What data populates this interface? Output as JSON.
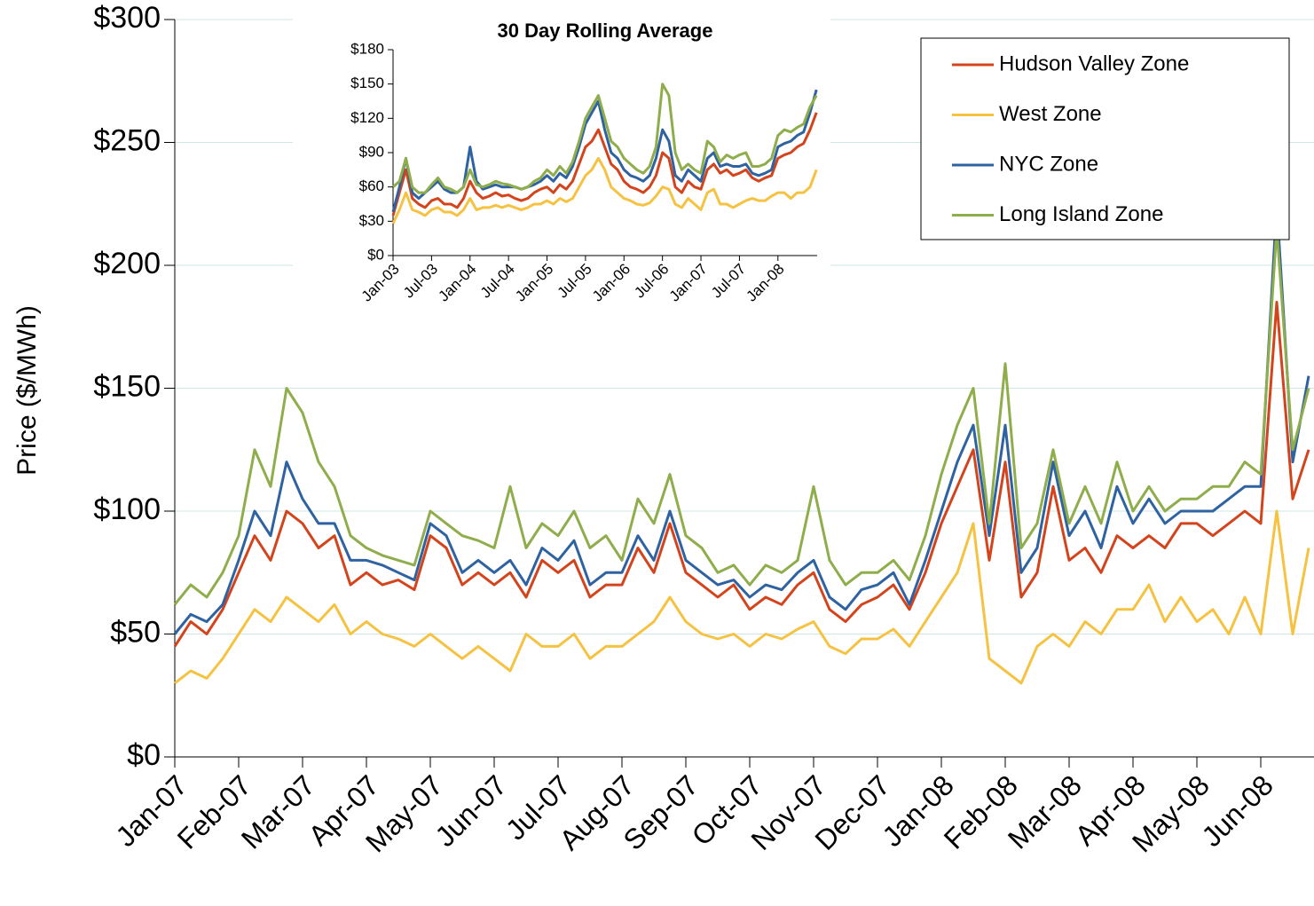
{
  "chart_data": [
    {
      "type": "line",
      "y_label": "Price ($/MWh)",
      "categories": [
        "Jan-07",
        null,
        null,
        null,
        "Feb-07",
        null,
        null,
        null,
        "Mar-07",
        null,
        null,
        null,
        "Apr-07",
        null,
        null,
        null,
        "May-07",
        null,
        null,
        null,
        "Jun-07",
        null,
        null,
        null,
        "Jul-07",
        null,
        null,
        null,
        "Aug-07",
        null,
        null,
        null,
        "Sep-07",
        null,
        null,
        null,
        "Oct-07",
        null,
        null,
        null,
        "Nov-07",
        null,
        null,
        null,
        "Dec-07",
        null,
        null,
        null,
        "Jan-08",
        null,
        null,
        null,
        "Feb-08",
        null,
        null,
        null,
        "Mar-08",
        null,
        null,
        null,
        "Apr-08",
        null,
        null,
        null,
        "May-08",
        null,
        null,
        null,
        "Jun-08",
        null,
        null,
        null
      ],
      "ylim": [
        0,
        300
      ],
      "yticks": [
        {
          "value": 0,
          "label": "$0"
        },
        {
          "value": 50,
          "label": "$50"
        },
        {
          "value": 100,
          "label": "$100"
        },
        {
          "value": 150,
          "label": "$150"
        },
        {
          "value": 200,
          "label": "$200"
        },
        {
          "value": 250,
          "label": "$250"
        },
        {
          "value": 300,
          "label": "$300"
        }
      ],
      "grid": true,
      "legend": "top-right",
      "series": [
        {
          "name": "Hudson Valley Zone",
          "color": "#d4441c",
          "values": [
            45,
            55,
            50,
            60,
            75,
            90,
            80,
            100,
            95,
            85,
            90,
            70,
            75,
            70,
            72,
            68,
            90,
            85,
            70,
            75,
            70,
            75,
            65,
            80,
            75,
            80,
            65,
            70,
            70,
            85,
            75,
            95,
            75,
            70,
            65,
            70,
            60,
            65,
            62,
            70,
            75,
            60,
            55,
            62,
            65,
            70,
            60,
            75,
            95,
            110,
            125,
            80,
            120,
            65,
            75,
            110,
            80,
            85,
            75,
            90,
            85,
            90,
            85,
            95,
            95,
            90,
            95,
            100,
            95,
            185,
            105,
            125
          ]
        },
        {
          "name": "West Zone",
          "color": "#f5c242",
          "values": [
            30,
            35,
            32,
            40,
            50,
            60,
            55,
            65,
            60,
            55,
            62,
            50,
            55,
            50,
            48,
            45,
            50,
            45,
            40,
            45,
            40,
            35,
            50,
            45,
            45,
            50,
            40,
            45,
            45,
            50,
            55,
            65,
            55,
            50,
            48,
            50,
            45,
            50,
            48,
            52,
            55,
            45,
            42,
            48,
            48,
            52,
            45,
            55,
            65,
            75,
            95,
            40,
            35,
            30,
            45,
            50,
            45,
            55,
            50,
            60,
            60,
            70,
            55,
            65,
            55,
            60,
            50,
            65,
            50,
            100,
            50,
            85
          ]
        },
        {
          "name": "NYC Zone",
          "color": "#2e62a0",
          "values": [
            50,
            58,
            55,
            62,
            80,
            100,
            90,
            120,
            105,
            95,
            95,
            80,
            80,
            78,
            75,
            72,
            95,
            90,
            75,
            80,
            75,
            80,
            70,
            85,
            80,
            88,
            70,
            75,
            75,
            90,
            80,
            100,
            80,
            75,
            70,
            72,
            65,
            70,
            68,
            75,
            80,
            65,
            60,
            68,
            70,
            75,
            62,
            80,
            100,
            120,
            135,
            90,
            135,
            75,
            85,
            120,
            90,
            100,
            85,
            110,
            95,
            105,
            95,
            100,
            100,
            100,
            105,
            110,
            110,
            225,
            120,
            155
          ]
        },
        {
          "name": "Long Island Zone",
          "color": "#8fad4b",
          "values": [
            62,
            70,
            65,
            75,
            90,
            125,
            110,
            150,
            140,
            120,
            110,
            90,
            85,
            82,
            80,
            78,
            100,
            95,
            90,
            88,
            85,
            110,
            85,
            95,
            90,
            100,
            85,
            90,
            80,
            105,
            95,
            115,
            90,
            85,
            75,
            78,
            70,
            78,
            75,
            80,
            110,
            80,
            70,
            75,
            75,
            80,
            72,
            90,
            115,
            135,
            150,
            95,
            160,
            85,
            95,
            125,
            95,
            110,
            95,
            120,
            100,
            110,
            100,
            105,
            105,
            110,
            110,
            120,
            115,
            215,
            125,
            150
          ]
        }
      ]
    },
    {
      "type": "line",
      "title": "30 Day Rolling Average",
      "categories": [
        "Jan-03",
        null,
        null,
        null,
        null,
        null,
        "Jul-03",
        null,
        null,
        null,
        null,
        null,
        "Jan-04",
        null,
        null,
        null,
        null,
        null,
        "Jul-04",
        null,
        null,
        null,
        null,
        null,
        "Jan-05",
        null,
        null,
        null,
        null,
        null,
        "Jul-05",
        null,
        null,
        null,
        null,
        null,
        "Jan-06",
        null,
        null,
        null,
        null,
        null,
        "Jul-06",
        null,
        null,
        null,
        null,
        null,
        "Jan-07",
        null,
        null,
        null,
        null,
        null,
        "Jul-07",
        null,
        null,
        null,
        null,
        null,
        "Jan-08",
        null,
        null,
        null,
        null,
        null,
        null
      ],
      "ylim": [
        0,
        180
      ],
      "yticks": [
        {
          "value": 0,
          "label": "$0"
        },
        {
          "value": 30,
          "label": "$30"
        },
        {
          "value": 60,
          "label": "$60"
        },
        {
          "value": 90,
          "label": "$90"
        },
        {
          "value": 120,
          "label": "$120"
        },
        {
          "value": 150,
          "label": "$150"
        },
        {
          "value": 180,
          "label": "$180"
        }
      ],
      "grid": false,
      "series": [
        {
          "color": "#d4441c",
          "values": [
            35,
            55,
            75,
            50,
            45,
            42,
            48,
            50,
            45,
            45,
            42,
            50,
            65,
            55,
            50,
            52,
            55,
            52,
            53,
            50,
            48,
            50,
            55,
            58,
            60,
            55,
            62,
            58,
            65,
            80,
            95,
            100,
            110,
            95,
            80,
            75,
            65,
            60,
            58,
            55,
            60,
            70,
            90,
            85,
            60,
            55,
            65,
            60,
            58,
            75,
            80,
            72,
            75,
            70,
            72,
            75,
            68,
            65,
            68,
            70,
            85,
            88,
            90,
            95,
            98,
            110,
            125
          ]
        },
        {
          "color": "#f5c242",
          "values": [
            28,
            40,
            55,
            40,
            38,
            35,
            40,
            42,
            38,
            38,
            35,
            40,
            50,
            40,
            42,
            42,
            44,
            42,
            44,
            42,
            40,
            42,
            45,
            45,
            48,
            45,
            50,
            47,
            50,
            60,
            70,
            75,
            85,
            75,
            60,
            55,
            50,
            48,
            45,
            44,
            46,
            52,
            60,
            58,
            45,
            42,
            50,
            45,
            40,
            55,
            58,
            45,
            45,
            42,
            45,
            48,
            50,
            48,
            48,
            52,
            55,
            55,
            50,
            55,
            55,
            60,
            75
          ]
        },
        {
          "color": "#2e62a0",
          "values": [
            38,
            60,
            85,
            55,
            50,
            55,
            60,
            65,
            58,
            55,
            55,
            60,
            95,
            65,
            58,
            60,
            62,
            60,
            60,
            60,
            58,
            60,
            62,
            65,
            70,
            65,
            72,
            68,
            78,
            95,
            115,
            125,
            135,
            110,
            90,
            85,
            75,
            70,
            68,
            65,
            70,
            85,
            110,
            100,
            70,
            65,
            75,
            70,
            65,
            85,
            90,
            78,
            80,
            78,
            78,
            80,
            72,
            70,
            72,
            75,
            95,
            98,
            100,
            105,
            108,
            125,
            145
          ]
        },
        {
          "color": "#8fad4b",
          "values": [
            60,
            65,
            85,
            60,
            55,
            55,
            62,
            68,
            60,
            58,
            55,
            60,
            75,
            62,
            60,
            62,
            65,
            63,
            62,
            60,
            58,
            60,
            65,
            68,
            75,
            70,
            78,
            72,
            82,
            100,
            120,
            130,
            140,
            120,
            100,
            95,
            85,
            80,
            75,
            72,
            78,
            95,
            150,
            140,
            90,
            75,
            80,
            75,
            72,
            100,
            95,
            82,
            88,
            85,
            88,
            90,
            78,
            78,
            80,
            85,
            105,
            110,
            108,
            112,
            115,
            130,
            140
          ]
        }
      ]
    }
  ]
}
